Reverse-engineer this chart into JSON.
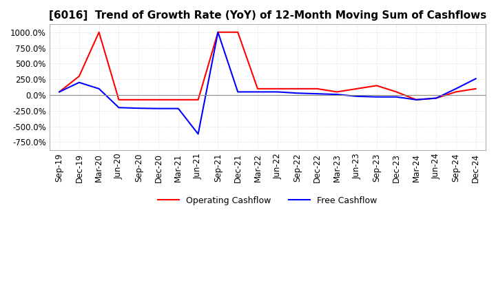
{
  "title": "[6016]  Trend of Growth Rate (YoY) of 12-Month Moving Sum of Cashflows",
  "title_fontsize": 11,
  "ylim": [
    -875,
    1125
  ],
  "yticks": [
    -750,
    -500,
    -250,
    0,
    250,
    500,
    750,
    1000
  ],
  "yticklabels": [
    "-750.0%",
    "-500.0%",
    "-250.0%",
    "0.0%",
    "250.0%",
    "500.0%",
    "750.0%",
    "1000.0%"
  ],
  "background_color": "#ffffff",
  "grid_color": "#c8c8c8",
  "operating_color": "#ff0000",
  "free_color": "#0000ff",
  "legend_labels": [
    "Operating Cashflow",
    "Free Cashflow"
  ],
  "x_dates": [
    "Sep-19",
    "Dec-19",
    "Mar-20",
    "Jun-20",
    "Sep-20",
    "Dec-20",
    "Mar-21",
    "Jun-21",
    "Sep-21",
    "Dec-21",
    "Mar-22",
    "Jun-22",
    "Sep-22",
    "Dec-22",
    "Mar-23",
    "Jun-23",
    "Sep-23",
    "Dec-23",
    "Mar-24",
    "Jun-24",
    "Sep-24",
    "Dec-24"
  ],
  "operating_cashflow": [
    50,
    300,
    1000,
    -75,
    -75,
    -75,
    -75,
    -75,
    1000,
    1000,
    100,
    100,
    100,
    100,
    50,
    100,
    150,
    50,
    -75,
    -50,
    50,
    100
  ],
  "free_cashflow": [
    50,
    200,
    100,
    -200,
    -210,
    -215,
    -215,
    -620,
    1000,
    50,
    50,
    50,
    30,
    20,
    10,
    -20,
    -30,
    -30,
    -75,
    -50,
    100,
    260
  ]
}
